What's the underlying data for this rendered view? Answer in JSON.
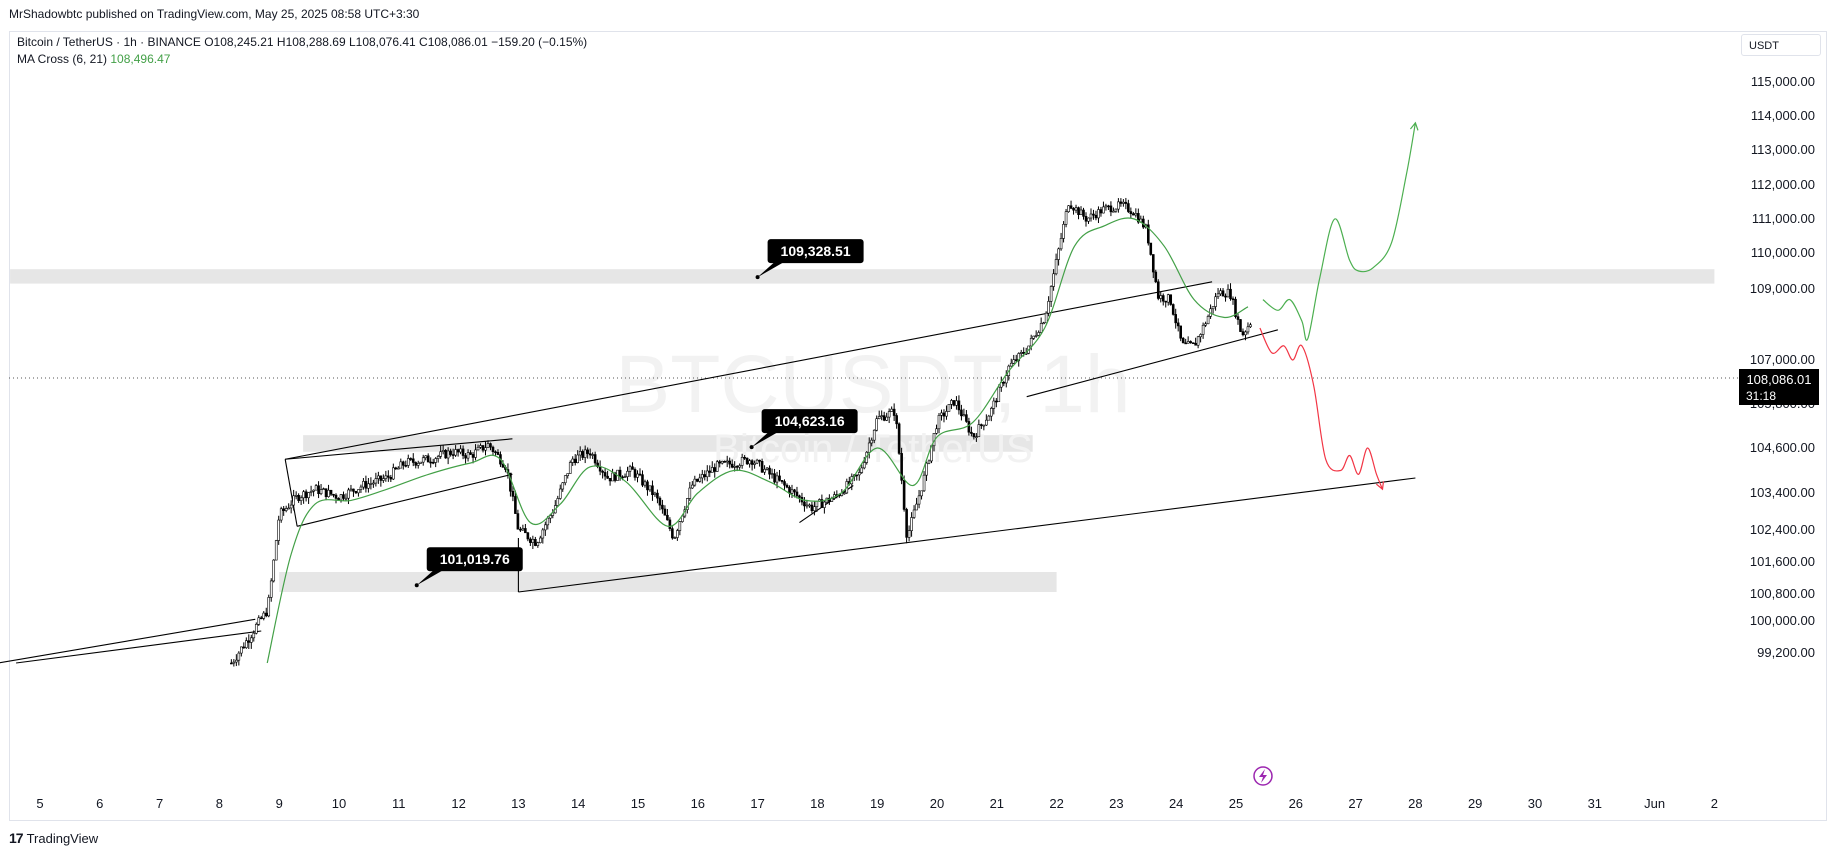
{
  "header": {
    "publisher_line": "MrShadowbtc published on TradingView.com, May 25, 2025 08:58 UTC+3:30"
  },
  "legend": {
    "symbol_line": "Bitcoin / TetherUS · 1h · BINANCE",
    "ohlc": "O108,245.21 H108,288.69 L108,076.41 C108,086.01 −159.20 (−0.15%)",
    "indicator_label": "MA Cross (6, 21)",
    "indicator_value": "108,496.47"
  },
  "currency_label": "USDT",
  "watermark": {
    "ticker": "BTCUSDT, 1h",
    "name": "Bitcoin / TetherUS"
  },
  "footer": {
    "brand": "TradingView",
    "logo": "tradingview-logo-icon"
  },
  "colors": {
    "ma_line": "#43a047",
    "bull_projection": "#4caf50",
    "bear_projection": "#f23645",
    "candles": "#000000",
    "zone": "#e6e6e6",
    "last_price_bg": "#000000"
  },
  "chart_data": {
    "type": "candlestick",
    "timeframe": "1h",
    "x_ticks": [
      "5",
      "6",
      "7",
      "8",
      "9",
      "10",
      "11",
      "12",
      "13",
      "14",
      "15",
      "16",
      "17",
      "18",
      "19",
      "20",
      "21",
      "22",
      "23",
      "24",
      "25",
      "26",
      "27",
      "28",
      "29",
      "30",
      "31",
      "Jun",
      "2"
    ],
    "y_ticks": [
      "115,000.00",
      "114,000.00",
      "113,000.00",
      "112,000.00",
      "111,000.00",
      "110,000.00",
      "109,000.00",
      "107,000.00",
      "105,800.00",
      "104,600.00",
      "103,400.00",
      "102,400.00",
      "101,600.00",
      "100,800.00",
      "100,000.00",
      "99,200.00"
    ],
    "y_tick_values": [
      115000,
      114000,
      113000,
      112000,
      111000,
      110000,
      109000,
      107000,
      105800,
      104600,
      103400,
      102400,
      101600,
      100800,
      100000,
      99200
    ],
    "last_price": "108,086.01",
    "countdown": "31:18",
    "annotations": [
      {
        "label": "109,328.51",
        "date": 17.0,
        "price": 109328.51
      },
      {
        "label": "104,623.16",
        "date": 16.9,
        "price": 104623.16
      },
      {
        "label": "101,019.76",
        "date": 11.3,
        "price": 101019.76
      }
    ],
    "zones": [
      {
        "from_date": 4.5,
        "to_date": 33.0,
        "low": 109150,
        "high": 109550
      },
      {
        "from_date": 9.4,
        "to_date": 21.6,
        "low": 104500,
        "high": 104950
      },
      {
        "from_date": 9.0,
        "to_date": 22.0,
        "low": 100850,
        "high": 101350
      }
    ],
    "price_path": [
      [
        8.2,
        98950
      ],
      [
        8.5,
        99600
      ],
      [
        8.8,
        100300
      ],
      [
        8.9,
        101500
      ],
      [
        9.0,
        102800
      ],
      [
        9.3,
        103300
      ],
      [
        9.6,
        103500
      ],
      [
        10.0,
        103300
      ],
      [
        10.4,
        103600
      ],
      [
        10.8,
        103800
      ],
      [
        11.1,
        104200
      ],
      [
        11.5,
        104300
      ],
      [
        11.9,
        104500
      ],
      [
        12.2,
        104400
      ],
      [
        12.5,
        104700
      ],
      [
        12.8,
        104100
      ],
      [
        13.0,
        102400
      ],
      [
        13.3,
        102100
      ],
      [
        13.6,
        103000
      ],
      [
        13.9,
        104300
      ],
      [
        14.2,
        104500
      ],
      [
        14.5,
        103800
      ],
      [
        14.9,
        104000
      ],
      [
        15.3,
        103300
      ],
      [
        15.6,
        102200
      ],
      [
        15.9,
        103600
      ],
      [
        16.3,
        104100
      ],
      [
        16.6,
        104200
      ],
      [
        16.9,
        104300
      ],
      [
        17.2,
        103900
      ],
      [
        17.6,
        103400
      ],
      [
        17.9,
        103000
      ],
      [
        18.3,
        103300
      ],
      [
        18.7,
        103900
      ],
      [
        19.0,
        105400
      ],
      [
        19.3,
        105600
      ],
      [
        19.5,
        102200
      ],
      [
        19.8,
        103900
      ],
      [
        20.0,
        105300
      ],
      [
        20.3,
        105900
      ],
      [
        20.6,
        104900
      ],
      [
        20.9,
        105600
      ],
      [
        21.2,
        106800
      ],
      [
        21.5,
        107300
      ],
      [
        21.8,
        108200
      ],
      [
        22.0,
        109800
      ],
      [
        22.2,
        111500
      ],
      [
        22.5,
        111000
      ],
      [
        22.8,
        111300
      ],
      [
        23.1,
        111400
      ],
      [
        23.3,
        111200
      ],
      [
        23.5,
        110700
      ],
      [
        23.7,
        108800
      ],
      [
        23.9,
        108700
      ],
      [
        24.1,
        107400
      ],
      [
        24.3,
        107400
      ],
      [
        24.5,
        108100
      ],
      [
        24.7,
        108900
      ],
      [
        24.9,
        108900
      ],
      [
        25.1,
        107700
      ],
      [
        25.25,
        108086
      ]
    ],
    "ma_path": [
      [
        8.8,
        98950
      ],
      [
        9.2,
        101800
      ],
      [
        9.6,
        103100
      ],
      [
        10.2,
        103200
      ],
      [
        10.8,
        103500
      ],
      [
        11.5,
        103900
      ],
      [
        12.2,
        104200
      ],
      [
        12.7,
        104300
      ],
      [
        13.2,
        102600
      ],
      [
        13.7,
        103100
      ],
      [
        14.2,
        104100
      ],
      [
        14.8,
        103700
      ],
      [
        15.5,
        102500
      ],
      [
        16.0,
        103400
      ],
      [
        16.6,
        104000
      ],
      [
        17.2,
        103700
      ],
      [
        17.8,
        103200
      ],
      [
        18.4,
        103400
      ],
      [
        19.0,
        104600
      ],
      [
        19.6,
        103600
      ],
      [
        20.0,
        104900
      ],
      [
        20.6,
        105300
      ],
      [
        21.2,
        106700
      ],
      [
        21.8,
        107900
      ],
      [
        22.3,
        110200
      ],
      [
        22.8,
        110800
      ],
      [
        23.3,
        111000
      ],
      [
        23.8,
        110200
      ],
      [
        24.3,
        108700
      ],
      [
        24.8,
        108200
      ],
      [
        25.2,
        108500
      ]
    ],
    "trendlines": [
      [
        [
          4.3,
          98950
        ],
        [
          8.6,
          100050
        ]
      ],
      [
        [
          4.6,
          98950
        ],
        [
          8.7,
          99750
        ]
      ],
      [
        [
          9.1,
          104300
        ],
        [
          12.9,
          104850
        ]
      ],
      [
        [
          9.3,
          102500
        ],
        [
          12.9,
          103900
        ]
      ],
      [
        [
          9.1,
          104300
        ],
        [
          9.3,
          102500
        ]
      ],
      [
        [
          9.1,
          104300
        ],
        [
          24.6,
          109200
        ]
      ],
      [
        [
          21.5,
          106000
        ],
        [
          25.7,
          107850
        ]
      ],
      [
        [
          13.0,
          100850
        ],
        [
          28.0,
          103800
        ]
      ],
      [
        [
          17.7,
          102600
        ],
        [
          18.6,
          103600
        ]
      ],
      [
        [
          13.0,
          100850
        ],
        [
          13.0,
          102200
        ]
      ]
    ],
    "bullish_projection": [
      [
        25.45,
        108700
      ],
      [
        25.7,
        108400
      ],
      [
        25.9,
        108700
      ],
      [
        26.1,
        108100
      ],
      [
        26.2,
        107600
      ],
      [
        26.4,
        109300
      ],
      [
        26.65,
        111000
      ],
      [
        26.9,
        109800
      ],
      [
        27.05,
        109500
      ],
      [
        27.3,
        109600
      ],
      [
        27.6,
        110300
      ],
      [
        27.85,
        112300
      ],
      [
        28.0,
        113800
      ]
    ],
    "bearish_projection": [
      [
        25.4,
        107900
      ],
      [
        25.6,
        107200
      ],
      [
        25.8,
        107400
      ],
      [
        25.95,
        107000
      ],
      [
        26.1,
        107400
      ],
      [
        26.3,
        106300
      ],
      [
        26.5,
        104300
      ],
      [
        26.75,
        104000
      ],
      [
        26.9,
        104400
      ],
      [
        27.05,
        103900
      ],
      [
        27.2,
        104600
      ],
      [
        27.35,
        103900
      ],
      [
        27.45,
        103500
      ]
    ]
  }
}
